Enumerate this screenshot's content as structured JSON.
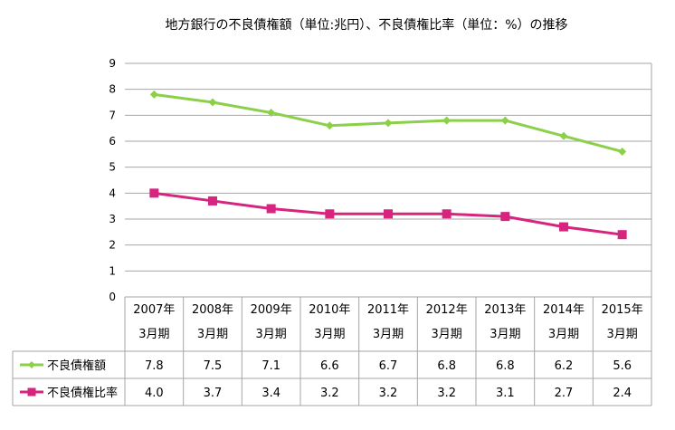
{
  "chart_data": {
    "type": "line",
    "title": "地方銀行の不良債権額（単位:兆円）、不良債権比率（単位：%）の推移",
    "categories": [
      [
        "2007年",
        "3月期"
      ],
      [
        "2008年",
        "3月期"
      ],
      [
        "2009年",
        "3月期"
      ],
      [
        "2010年",
        "3月期"
      ],
      [
        "2011年",
        "3月期"
      ],
      [
        "2012年",
        "3月期"
      ],
      [
        "2013年",
        "3月期"
      ],
      [
        "2014年",
        "3月期"
      ],
      [
        "2015年",
        "3月期"
      ]
    ],
    "yticks": [
      "0",
      "1",
      "2",
      "3",
      "4",
      "5",
      "6",
      "7",
      "8",
      "9"
    ],
    "ylim": [
      0,
      9
    ],
    "grid": true,
    "legend_placement": "data-table-left",
    "series": [
      {
        "name": "不良債権額",
        "color": "#8CD04A",
        "marker": "diamond",
        "values": [
          7.8,
          7.5,
          7.1,
          6.6,
          6.7,
          6.8,
          6.8,
          6.2,
          5.6
        ],
        "labels": [
          "7.8",
          "7.5",
          "7.1",
          "6.6",
          "6.7",
          "6.8",
          "6.8",
          "6.2",
          "5.6"
        ]
      },
      {
        "name": "不良債権比率",
        "color": "#D6247F",
        "marker": "square",
        "values": [
          4.0,
          3.7,
          3.4,
          3.2,
          3.2,
          3.2,
          3.1,
          2.7,
          2.4
        ],
        "labels": [
          "4.0",
          "3.7",
          "3.4",
          "3.2",
          "3.2",
          "3.2",
          "3.1",
          "2.7",
          "2.4"
        ]
      }
    ]
  }
}
